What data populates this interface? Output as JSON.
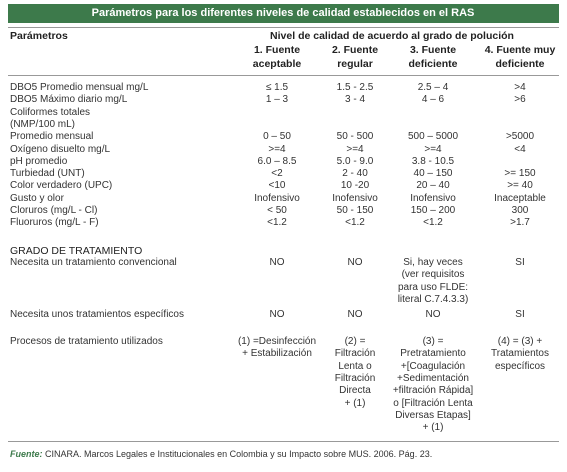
{
  "title": "Parámetros para los diferentes niveles de calidad establecidos en el RAS",
  "header": {
    "param": "Parámetros",
    "group": "Nivel de calidad de acuerdo al grado de polución",
    "columns": [
      [
        "1. Fuente",
        "aceptable"
      ],
      [
        "2. Fuente",
        "regular"
      ],
      [
        "3. Fuente",
        "deficiente"
      ],
      [
        "4. Fuente muy",
        "deficiente"
      ]
    ]
  },
  "rows": [
    {
      "label": "DBO5 Promedio mensual mg/L",
      "cells": [
        "≤ 1.5",
        "1.5 - 2.5",
        "2.5 – 4",
        ">4"
      ]
    },
    {
      "label": "DBO5 Máximo diario mg/L",
      "cells": [
        "1 – 3",
        "3 - 4",
        "4 – 6",
        ">6"
      ]
    },
    {
      "label": "Coliformes totales"
    },
    {
      "label": "(NMP/100 mL)"
    },
    {
      "label": "Promedio mensual",
      "cells": [
        "0 – 50",
        "50 - 500",
        "500 – 5000",
        ">5000"
      ]
    },
    {
      "label": "Oxígeno disuelto mg/L",
      "cells": [
        ">=4",
        ">=4",
        ">=4",
        "<4"
      ]
    },
    {
      "label": "pH promedio",
      "cells": [
        "6.0 – 8.5",
        "5.0 - 9.0",
        "3.8 - 10.5"
      ]
    },
    {
      "label": "Turbiedad (UNT)",
      "cells": [
        "<2",
        "2 - 40",
        "40 – 150",
        ">= 150"
      ]
    },
    {
      "label": "Color verdadero (UPC)",
      "cells": [
        "<10",
        "10 -20",
        "20 – 40",
        ">= 40"
      ]
    },
    {
      "label": "Gusto y olor",
      "cells": [
        "Inofensivo",
        "Inofensivo",
        "Inofensivo",
        "Inaceptable"
      ]
    },
    {
      "label": "Cloruros (mg/L - Cl)",
      "cells": [
        "< 50",
        "50 - 150",
        "150 – 200",
        "300"
      ]
    },
    {
      "label": "Fluoruros (mg/L - F)",
      "cells": [
        "<1.2",
        "<1.2",
        "<1.2",
        ">1.7"
      ]
    }
  ],
  "section": "GRADO DE TRATAMIENTO",
  "treatment": [
    {
      "label": "Necesita un tratamiento convencional",
      "cells": [
        [
          "NO"
        ],
        [
          "NO"
        ],
        [
          "Si, hay veces",
          "(ver requisitos",
          "para uso FLDE:",
          "literal C.7.4.3.3)"
        ],
        [
          "SI"
        ]
      ]
    },
    {
      "label": "Necesita unos tratamientos específicos",
      "cells": [
        [
          "NO"
        ],
        [
          "NO"
        ],
        [
          "NO"
        ],
        [
          "SI"
        ]
      ]
    },
    {
      "label": "Procesos de tratamiento utilizados",
      "cells": [
        [
          "(1) =Desinfección",
          "+ Estabilización"
        ],
        [
          "(2) =",
          "Filtración",
          "Lenta o",
          "Filtración",
          "Directa",
          "+ (1)"
        ],
        [
          "(3) =",
          "Pretratamiento",
          "+[Coagulación",
          "+Sedimentación",
          "+filtración Rápida]",
          "o [Filtración Lenta",
          "Diversas Etapas]",
          "+ (1)"
        ],
        [
          "(4) = (3) +",
          "Tratamientos",
          "específicos"
        ]
      ]
    }
  ],
  "footer": {
    "label": "Fuente:",
    "text": "CINARA. Marcos Legales e Institucionales en Colombia y su Impacto sobre MUS. 2006. Pág. 23."
  }
}
